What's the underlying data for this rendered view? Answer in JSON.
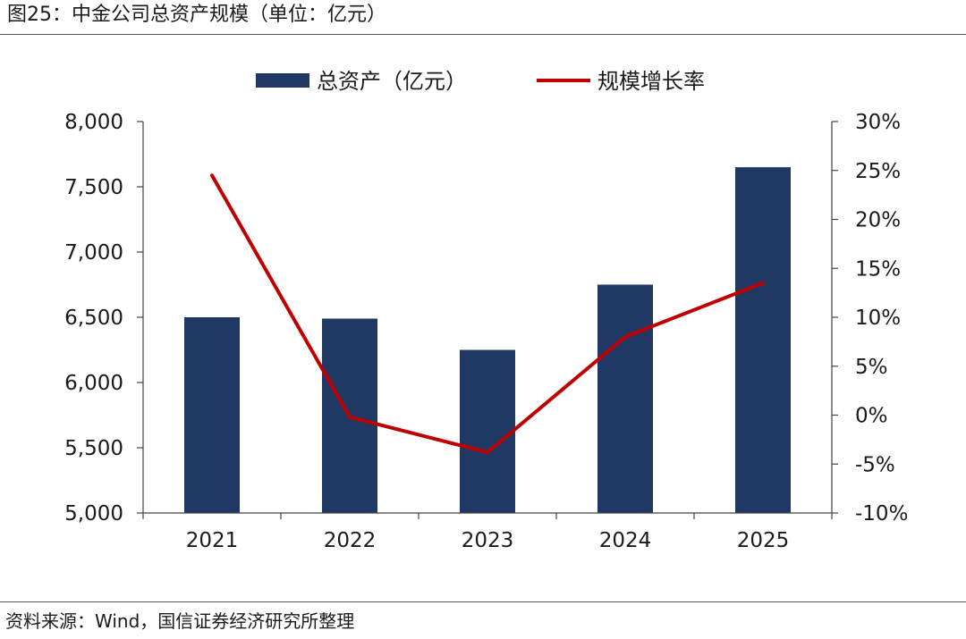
{
  "header": {
    "figure_title": "图25：中金公司总资产规模（单位：亿元）"
  },
  "footer": {
    "source": "资料来源：Wind，国信证券经济研究所整理"
  },
  "chart_data": {
    "type": "bar",
    "categories": [
      "2021",
      "2022",
      "2023",
      "2024",
      "2025"
    ],
    "series": [
      {
        "name": "总资产（亿元）",
        "type": "bar",
        "axis": "left",
        "color": "#1f3864",
        "values": [
          6500,
          6490,
          6250,
          6750,
          7650
        ]
      },
      {
        "name": "规模增长率",
        "type": "line",
        "axis": "right",
        "color": "#c00000",
        "values": [
          24.5,
          -0.2,
          -3.8,
          8.0,
          13.5
        ]
      }
    ],
    "left_axis": {
      "ylim": [
        5000,
        8000
      ],
      "ticks": [
        5000,
        5500,
        6000,
        6500,
        7000,
        7500,
        8000
      ],
      "tick_labels": [
        "5,000",
        "5,500",
        "6,000",
        "6,500",
        "7,000",
        "7,500",
        "8,000"
      ]
    },
    "right_axis": {
      "ylim": [
        -10,
        30
      ],
      "ticks": [
        -10,
        -5,
        0,
        5,
        10,
        15,
        20,
        25,
        30
      ],
      "tick_labels": [
        "-10%",
        "-5%",
        "0%",
        "5%",
        "10%",
        "15%",
        "20%",
        "25%",
        "30%"
      ]
    },
    "legend_position": "top-center",
    "grid": false
  }
}
